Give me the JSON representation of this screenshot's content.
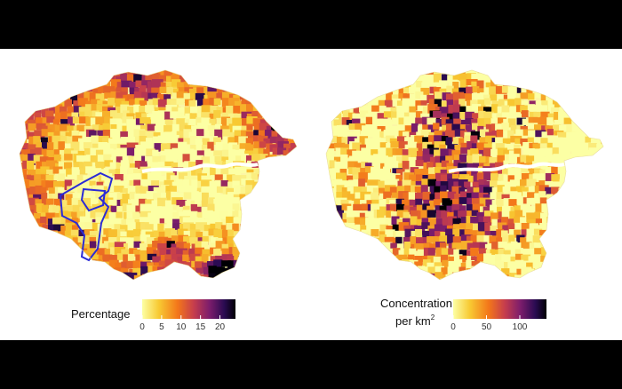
{
  "maps": [
    {
      "id": "percentage",
      "legend": {
        "title": "Percentage",
        "title_lines": [
          "Percentage"
        ],
        "ticks": [
          {
            "label": "0",
            "value": 0
          },
          {
            "label": "5",
            "value": 5
          },
          {
            "label": "10",
            "value": 10
          },
          {
            "label": "15",
            "value": 15
          },
          {
            "label": "20",
            "value": 20
          }
        ],
        "range": [
          0,
          24
        ]
      },
      "palette": "inferno-reversed",
      "highlighted_outline_color": "#2b2bd6"
    },
    {
      "id": "concentration",
      "legend": {
        "title": "Concentration per km²",
        "title_lines": [
          "Concentration",
          "per km",
          "2"
        ],
        "ticks": [
          {
            "label": "0",
            "value": 0
          },
          {
            "label": "50",
            "value": 50
          },
          {
            "label": "100",
            "value": 100
          }
        ],
        "range": [
          0,
          140
        ]
      },
      "palette": "inferno-reversed"
    }
  ],
  "colors": {
    "background": "#ffffff",
    "frame": "#000000",
    "river": "#ffffff",
    "stops": [
      "#fcffa4",
      "#f8c932",
      "#f3771a",
      "#c73e4c",
      "#7d1d6c",
      "#2a0b52",
      "#000004"
    ]
  }
}
